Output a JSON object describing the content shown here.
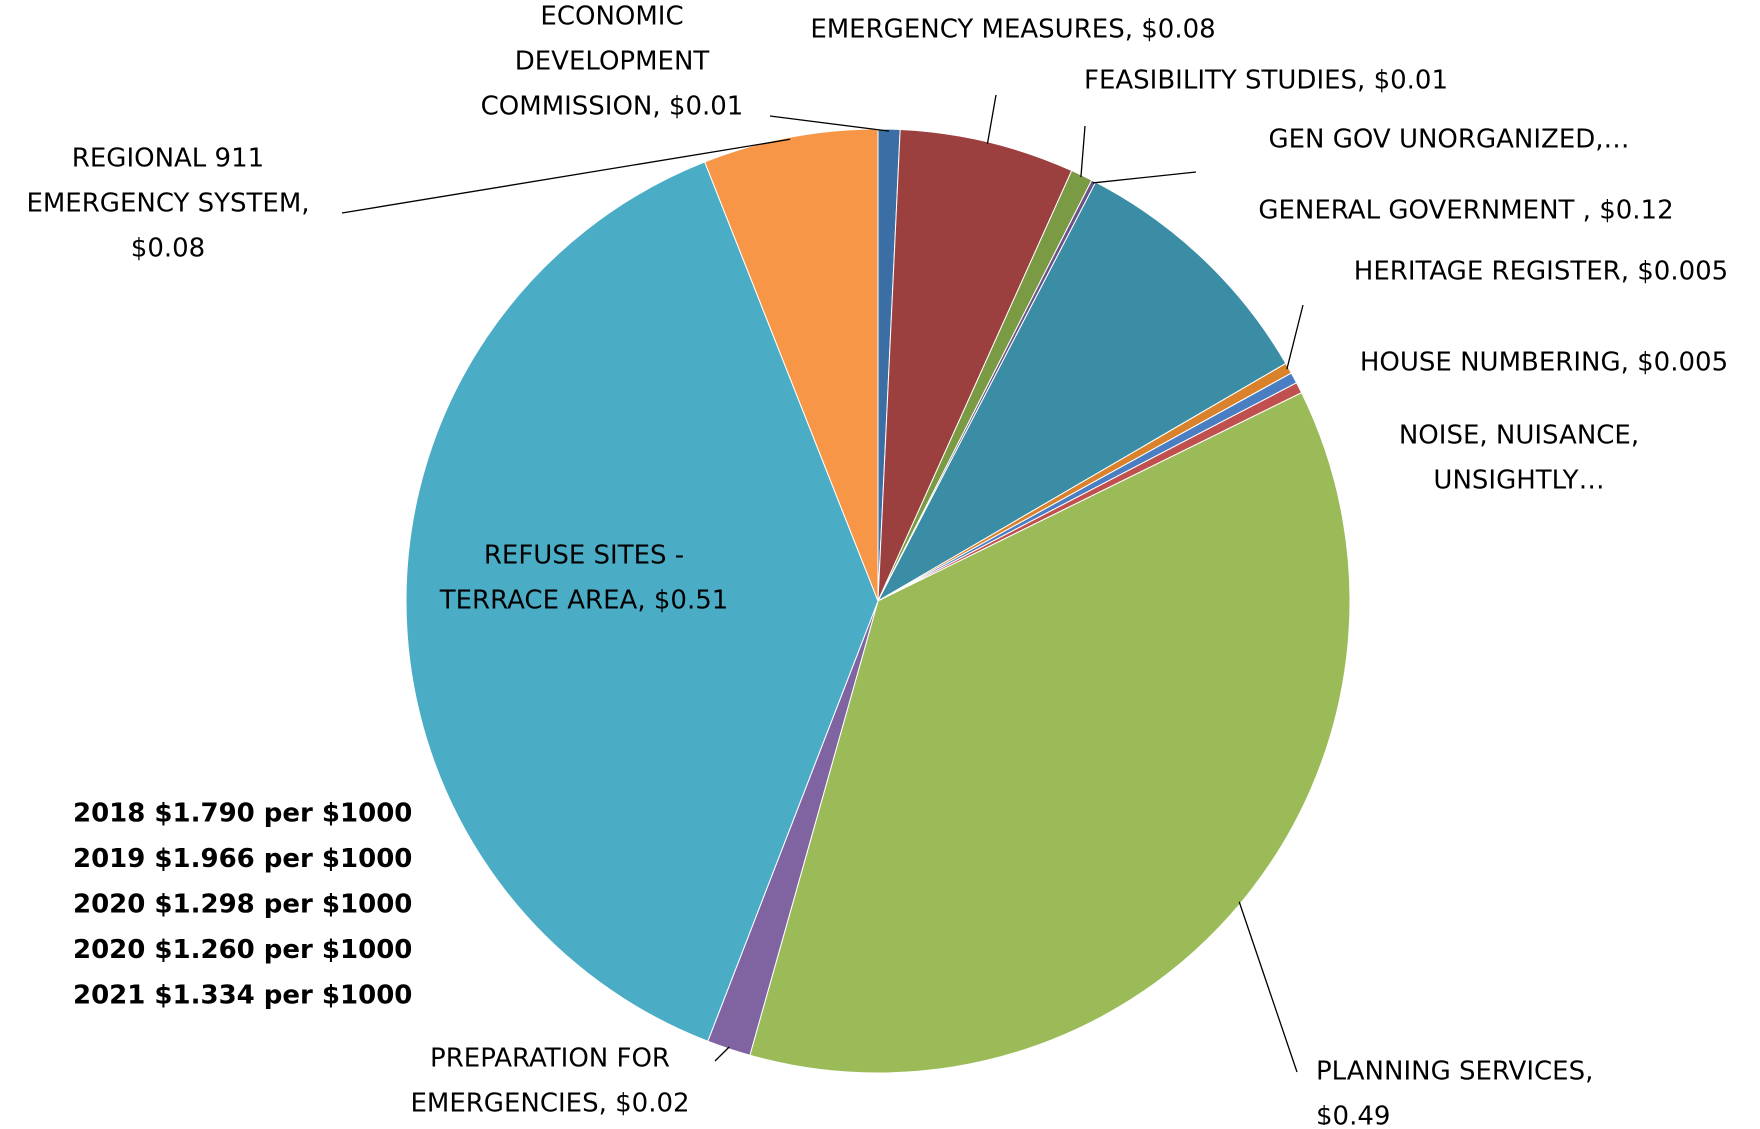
{
  "chart_data": {
    "type": "pie",
    "labels": [
      [
        "ECONOMIC",
        "DEVELOPMENT",
        "COMMISSION, $0.01"
      ],
      [
        "EMERGENCY MEASURES, $0.08"
      ],
      [
        "FEASIBILITY STUDIES, $0.01"
      ],
      [
        "GEN GOV UNORGANIZED,…"
      ],
      [
        "GENERAL GOVERNMENT  , $0.12"
      ],
      [
        "HERITAGE REGISTER, $0.005"
      ],
      [
        "HOUSE NUMBERING, $0.005"
      ],
      [
        "NOISE, NUISANCE,",
        "UNSIGHTLY…"
      ],
      [
        "PLANNING SERVICES,",
        "$0.49"
      ],
      [
        "PREPARATION FOR",
        "EMERGENCIES, $0.02"
      ],
      [
        "REFUSE SITES -",
        "TERRACE AREA, $0.51"
      ],
      [
        "REGIONAL 911",
        "EMERGENCY SYSTEM,",
        "$0.08"
      ]
    ],
    "values": [
      0.01,
      0.08,
      0.01,
      0.002,
      0.12,
      0.005,
      0.005,
      0.005,
      0.49,
      0.02,
      0.51,
      0.08
    ],
    "colors": [
      "#3a6ea5",
      "#9b3f3f",
      "#7a9a44",
      "#6a518a",
      "#3b8ca5",
      "#d9822b",
      "#4a7ec2",
      "#c0504d",
      "#9bbb59",
      "#8064a2",
      "#4bacc6",
      "#f79646"
    ],
    "annotations": [
      "2018 $1.790 per $1000",
      "2019 $1.966 per $1000",
      "2020 $1.298 per $1000",
      "2020 $1.260 per $1000",
      "2021 $1.334 per $1000"
    ]
  }
}
